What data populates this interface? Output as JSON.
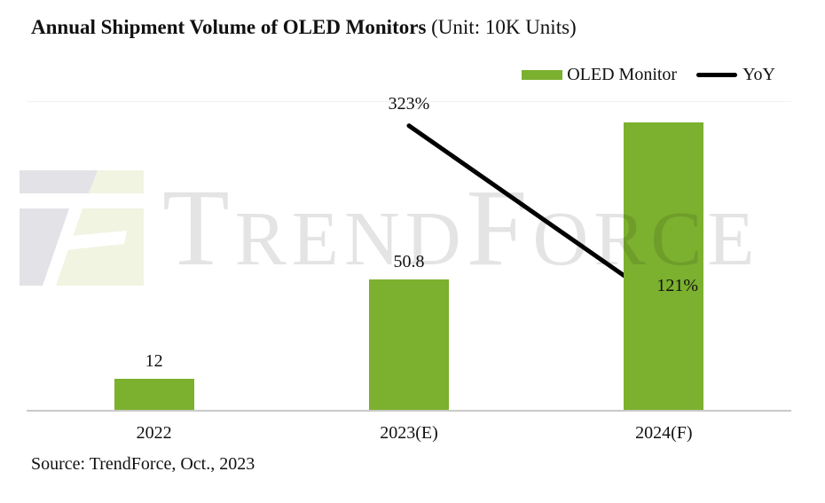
{
  "title": {
    "main": "Annual Shipment Volume of OLED Monitors",
    "suffix": " (Unit: 10K Units)"
  },
  "legend": [
    {
      "label": "OLED Monitor",
      "swatch": "bar-swatch",
      "color": "#7CB02F"
    },
    {
      "label": "YoY",
      "swatch": "line-swatch",
      "color": "#000000"
    }
  ],
  "source": "Source: TrendForce, Oct., 2023",
  "watermark": {
    "text": "TrendForce"
  },
  "colors": {
    "bar": "#7CB02F",
    "line": "#000000",
    "axis": "#C9C9C9",
    "watermark_gray": "#E4E4E4",
    "logo_gray": "#E3E2E6",
    "logo_green": "#F0F4E1"
  },
  "chart_data": {
    "type": "bar+line",
    "title": "Annual Shipment Volume of OLED Monitors",
    "unit": "10K Units",
    "categories": [
      "2022",
      "2023(E)",
      "2024(F)"
    ],
    "series": [
      {
        "name": "OLED Monitor",
        "type": "bar",
        "values": [
          12,
          50.8,
          112
        ],
        "data_labels": [
          "12",
          "50.8",
          ""
        ],
        "color": "#7CB02F",
        "axis_range": [
          0,
          125
        ]
      },
      {
        "name": "YoY",
        "type": "line",
        "values": [
          null,
          323,
          121
        ],
        "data_labels": [
          "",
          "323%",
          "121%"
        ],
        "color": "#000000",
        "axis_range": [
          0,
          365
        ]
      }
    ],
    "xlabel": "",
    "ylabel": "",
    "grid": false,
    "legend_position": "top-right",
    "note": "2024(F) bar carries no printed value; ~112 estimated from bar height"
  }
}
